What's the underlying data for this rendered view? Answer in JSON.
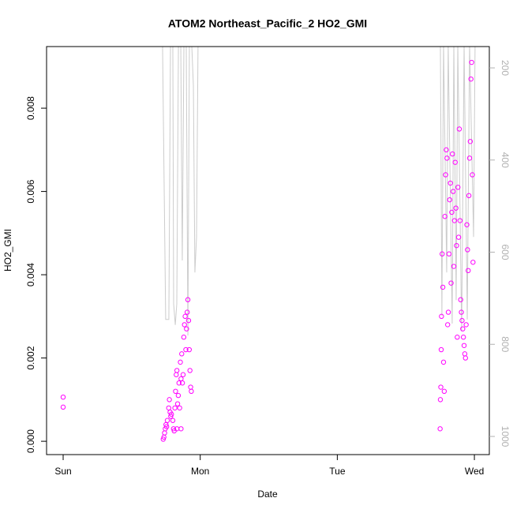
{
  "chart_data": {
    "type": "scatter",
    "title": "ATOM2 Northeast_Pacific_2 HO2_GMI",
    "xlabel": "Date",
    "ylabel": "HO2_GMI",
    "xlim": [
      -0.121,
      3.109
    ],
    "xticks": [
      {
        "value": 0,
        "label": "Sun"
      },
      {
        "value": 1,
        "label": "Mon"
      },
      {
        "value": 2,
        "label": "Tue"
      },
      {
        "value": 3,
        "label": "Wed"
      }
    ],
    "ylim": [
      -0.00032,
      0.00948
    ],
    "yticks": [
      {
        "value": 0,
        "label": "0.000"
      },
      {
        "value": 0.002,
        "label": "0.002"
      },
      {
        "value": 0.004,
        "label": "0.004"
      },
      {
        "value": 0.006,
        "label": "0.006"
      },
      {
        "value": 0.008,
        "label": "0.008"
      }
    ],
    "y2lim": [
      1039.4,
      153.7
    ],
    "y2ticks": [
      200,
      400,
      600,
      800,
      1000
    ],
    "series": [
      {
        "type": "scatter",
        "color": "#ff00ff",
        "x": [
          0,
          0,
          0.73,
          0.735,
          0.74,
          0.745,
          0.75,
          0.755,
          0.76,
          0.77,
          0.775,
          0.78,
          0.785,
          0.79,
          0.8,
          0.805,
          0.81,
          0.815,
          0.82,
          0.825,
          0.83,
          0.835,
          0.84,
          0.845,
          0.85,
          0.855,
          0.86,
          0.865,
          0.87,
          0.875,
          0.88,
          0.885,
          0.89,
          0.895,
          0.9,
          0.905,
          0.91,
          0.915,
          0.92,
          0.925,
          0.93,
          0.935,
          0.86,
          0.83,
          2.75,
          2.752,
          2.755,
          2.758,
          2.76,
          2.765,
          2.77,
          2.775,
          2.78,
          2.785,
          2.79,
          2.795,
          2.8,
          2.805,
          2.81,
          2.815,
          2.82,
          2.825,
          2.83,
          2.835,
          2.84,
          2.845,
          2.85,
          2.855,
          2.86,
          2.865,
          2.87,
          2.875,
          2.88,
          2.885,
          2.89,
          2.895,
          2.9,
          2.905,
          2.91,
          2.915,
          2.92,
          2.925,
          2.93,
          2.935,
          2.94,
          2.945,
          2.95,
          2.955,
          2.96,
          2.965,
          2.97,
          2.975,
          2.98,
          2.985,
          2.99
        ],
        "values": [
          0.00106,
          0.00082,
          5e-05,
          0.0001,
          0.0002,
          0.0003,
          0.0004,
          0.00035,
          0.0005,
          0.0008,
          0.001,
          0.0007,
          0.0006,
          0.00065,
          0.0005,
          0.0003,
          0.00025,
          0.0008,
          0.0012,
          0.0016,
          0.0017,
          0.0009,
          0.0011,
          0.0014,
          0.0008,
          0.0019,
          0.0015,
          0.0021,
          0.0014,
          0.0016,
          0.0025,
          0.0028,
          0.003,
          0.0022,
          0.0027,
          0.0031,
          0.0034,
          0.0029,
          0.0022,
          0.0017,
          0.0013,
          0.0012,
          0.0003,
          0.0003,
          0.0003,
          0.001,
          0.0013,
          0.0022,
          0.003,
          0.0045,
          0.0037,
          0.0019,
          0.0012,
          0.0054,
          0.0064,
          0.007,
          0.0068,
          0.0028,
          0.0031,
          0.0045,
          0.0058,
          0.0062,
          0.0038,
          0.0055,
          0.0069,
          0.006,
          0.0042,
          0.0053,
          0.0067,
          0.0056,
          0.0047,
          0.0025,
          0.0061,
          0.0049,
          0.0075,
          0.0053,
          0.0034,
          0.0031,
          0.0029,
          0.0027,
          0.0025,
          0.0023,
          0.0021,
          0.002,
          0.0028,
          0.0052,
          0.0046,
          0.0041,
          0.0059,
          0.0068,
          0.0072,
          0.0087,
          0.0091,
          0.0064,
          0.0043
        ]
      },
      {
        "type": "line",
        "axis": "y2",
        "color": "#cccccc",
        "x": [
          0.725,
          0.748,
          0.771,
          0.783,
          0.8,
          0.806,
          0.818,
          0.829,
          0.841,
          0.858,
          0.869,
          0.881,
          0.898,
          0.91,
          0.921,
          0.938,
          0.95,
          0.961,
          0.973,
          0.984,
          0.996,
          null,
          2.735,
          2.752,
          2.763,
          2.775,
          2.798,
          2.809,
          2.838,
          2.85,
          2.867,
          2.879,
          2.907,
          2.925,
          2.948,
          2.965,
          2.994,
          3.005
        ],
        "values": [
          150,
          746,
          746,
          150,
          150,
          712,
          758,
          712,
          150,
          150,
          618,
          150,
          150,
          781,
          150,
          150,
          238,
          644,
          567,
          150,
          150,
          null,
          150,
          150,
          738,
          150,
          644,
          150,
          755,
          150,
          704,
          150,
          772,
          150,
          746,
          150,
          567,
          150
        ]
      }
    ]
  }
}
